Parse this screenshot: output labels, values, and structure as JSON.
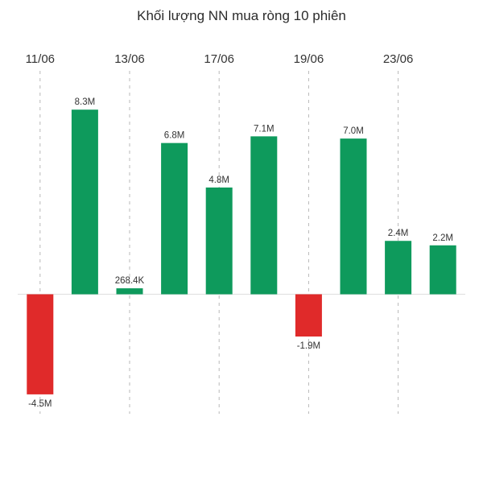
{
  "chart_data": {
    "type": "bar",
    "title": "Khối lượng NN mua ròng 10 phiên",
    "xlabel": "",
    "ylabel": "",
    "ylim": [
      -5.3,
      9.9
    ],
    "grid": "vertical dashed lines at labeled dates",
    "legend": "none",
    "positive_color": "#0e9a5c",
    "negative_color": "#e02a2a",
    "tick_labels": [
      "11/06",
      "13/06",
      "17/06",
      "19/06",
      "23/06"
    ],
    "tick_positions": [
      0,
      2,
      4,
      6,
      8
    ],
    "values": [
      -4.5,
      8.3,
      0.2684,
      6.8,
      4.8,
      7.1,
      -1.9,
      7.0,
      2.4,
      2.2
    ],
    "data_labels": [
      "-4.5M",
      "8.3M",
      "268.4K",
      "6.8M",
      "4.8M",
      "7.1M",
      "-1.9M",
      "7.0M",
      "2.4M",
      "2.2M"
    ]
  }
}
